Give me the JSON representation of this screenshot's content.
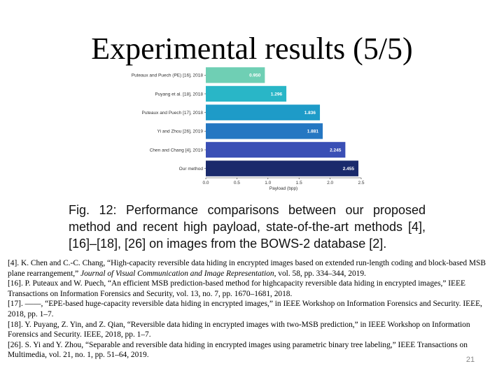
{
  "slide": {
    "title": "Experimental results (5/5)",
    "caption": "Fig. 12: Performance comparisons between our proposed method and recent high payload, state-of-the-art methods [4], [16]–[18], [26] on images from the BOWS-2 database [2].",
    "page_number": "21"
  },
  "references": [
    {
      "pre": "[4]. K. Chen and C.-C. Chang, “High-capacity reversible data hiding in encrypted images based on extended run-length coding and block-based MSB plane rearrangement,” ",
      "journal": "Journal of Visual Communication and Image Representation",
      "post": ", vol. 58, pp. 334–344, 2019."
    },
    {
      "pre": "[16]. P. Puteaux and W. Puech, “An efficient MSB prediction-based method for highcapacity reversible data hiding in encrypted images,” IEEE Transactions on Information Forensics and Security, vol. 13, no. 7, pp. 1670–1681, 2018.",
      "journal": "",
      "post": ""
    },
    {
      "pre": "[17]. ——, “EPE-based huge-capacity reversible data hiding in encrypted images,” in IEEE Workshop on Information Forensics and Security. IEEE, 2018, pp. 1–7.",
      "journal": "",
      "post": ""
    },
    {
      "pre": "[18]. Y. Puyang, Z. Yin, and Z. Qian, “Reversible data hiding in encrypted images with two-MSB prediction,” in IEEE Workshop on Information Forensics and Security. IEEE, 2018, pp. 1–7.",
      "journal": "",
      "post": ""
    },
    {
      "pre": "[26]. S. Yi and Y. Zhou, “Separable and reversible data hiding in encrypted images using parametric binary tree labeling,” IEEE Transactions on Multimedia, vol. 21, no. 1, pp. 51–64, 2019.",
      "journal": "",
      "post": ""
    }
  ],
  "chart_data": {
    "type": "bar",
    "orientation": "horizontal",
    "categories": [
      "Puteaux and Puech (PE) [16], 2018",
      "Puyang et al. [18], 2018",
      "Puteaux and Puech [17], 2018",
      "Yi and Zhou [26], 2019",
      "Chen and Chang [4], 2019",
      "Our method"
    ],
    "values": [
      0.95,
      1.296,
      1.836,
      1.881,
      2.245,
      2.455
    ],
    "value_labels": [
      "0.950",
      "1.296",
      "1.836",
      "1.881",
      "2.245",
      "2.455"
    ],
    "colors": [
      "#6fcfb4",
      "#29b6c7",
      "#1e9bc8",
      "#2577c2",
      "#3a4fb5",
      "#1a2a6c"
    ],
    "xlabel": "Payload (bpp)",
    "xticks": [
      "0.0",
      "0.5",
      "1.0",
      "1.5",
      "2.0",
      "2.5"
    ],
    "xlim": [
      0,
      2.5
    ],
    "grid": false
  }
}
